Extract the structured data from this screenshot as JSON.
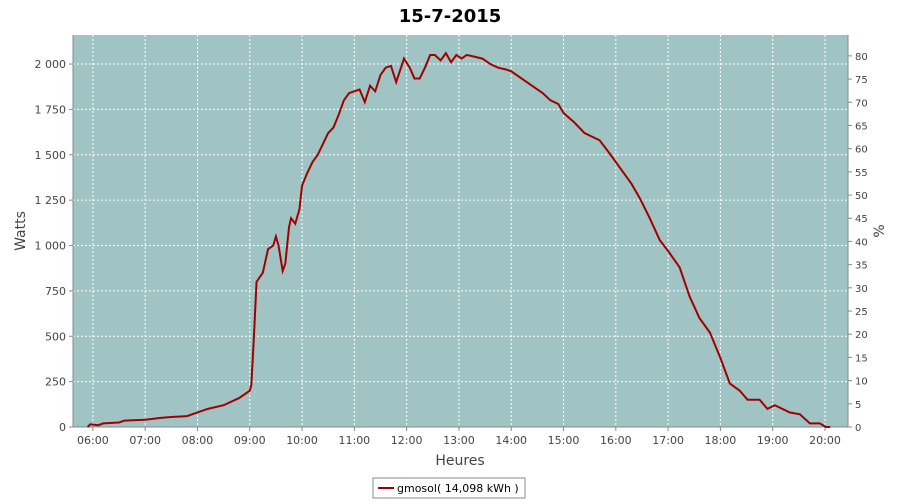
{
  "chart_data": {
    "type": "line",
    "title": "15-7-2015",
    "xlabel": "Heures",
    "ylabel": "Watts",
    "y2label": "%",
    "xlim": [
      5.62,
      20.44
    ],
    "xticks": [
      {
        "value": 6,
        "label": "06:00"
      },
      {
        "value": 7,
        "label": "07:00"
      },
      {
        "value": 8,
        "label": "08:00"
      },
      {
        "value": 9,
        "label": "09:00"
      },
      {
        "value": 10,
        "label": "10:00"
      },
      {
        "value": 11,
        "label": "11:00"
      },
      {
        "value": 12,
        "label": "12:00"
      },
      {
        "value": 13,
        "label": "13:00"
      },
      {
        "value": 14,
        "label": "14:00"
      },
      {
        "value": 15,
        "label": "15:00"
      },
      {
        "value": 16,
        "label": "16:00"
      },
      {
        "value": 17,
        "label": "17:00"
      },
      {
        "value": 18,
        "label": "18:00"
      },
      {
        "value": 19,
        "label": "19:00"
      },
      {
        "value": 20,
        "label": "20:00"
      }
    ],
    "ylim": [
      0,
      2160
    ],
    "yticks": [
      0,
      250,
      500,
      750,
      {
        "value": 1000,
        "label": "1 000"
      },
      {
        "value": 1250,
        "label": "1 250"
      },
      {
        "value": 1500,
        "label": "1 500"
      },
      {
        "value": 1750,
        "label": "1 750"
      },
      {
        "value": 2000,
        "label": "2 000"
      }
    ],
    "y2lim": [
      0,
      84.5
    ],
    "y2ticks": [
      0,
      5,
      10,
      15,
      20,
      25,
      30,
      35,
      40,
      45,
      50,
      55,
      60,
      65,
      70,
      75,
      80
    ],
    "grid": true,
    "legend": "bottom",
    "x": [
      5.9,
      5.95,
      6.1,
      6.2,
      6.5,
      6.6,
      7.0,
      7.3,
      7.5,
      7.8,
      8.0,
      8.2,
      8.5,
      8.8,
      9.0,
      9.03,
      9.08,
      9.13,
      9.25,
      9.35,
      9.45,
      9.5,
      9.55,
      9.63,
      9.68,
      9.75,
      9.79,
      9.87,
      9.95,
      10.0,
      10.1,
      10.2,
      10.3,
      10.4,
      10.5,
      10.6,
      10.7,
      10.8,
      10.9,
      11.0,
      11.1,
      11.2,
      11.3,
      11.4,
      11.5,
      11.6,
      11.7,
      11.8,
      11.95,
      12.06,
      12.15,
      12.25,
      12.35,
      12.45,
      12.54,
      12.65,
      12.75,
      12.85,
      12.95,
      13.05,
      13.15,
      13.3,
      13.45,
      13.6,
      13.75,
      13.9,
      14.0,
      14.2,
      14.4,
      14.6,
      14.75,
      14.9,
      15.0,
      15.2,
      15.4,
      15.69,
      15.9,
      16.1,
      16.3,
      16.46,
      16.65,
      16.84,
      17.0,
      17.22,
      17.41,
      17.6,
      17.8,
      18.0,
      18.18,
      18.37,
      18.52,
      18.75,
      18.9,
      19.04,
      19.33,
      19.52,
      19.71,
      19.9,
      20.02,
      20.1
    ],
    "series": [
      {
        "name": "gmosol( 14,098 kWh )",
        "color": "#a00000",
        "values": [
          0,
          15,
          10,
          20,
          25,
          35,
          40,
          50,
          55,
          60,
          80,
          100,
          120,
          160,
          200,
          230,
          500,
          800,
          850,
          980,
          1000,
          1050,
          1000,
          860,
          900,
          1100,
          1150,
          1120,
          1200,
          1330,
          1400,
          1460,
          1500,
          1560,
          1620,
          1650,
          1720,
          1800,
          1840,
          1850,
          1860,
          1790,
          1880,
          1850,
          1940,
          1980,
          1990,
          1900,
          2030,
          1980,
          1920,
          1920,
          1980,
          2050,
          2050,
          2020,
          2060,
          2010,
          2050,
          2030,
          2050,
          2040,
          2030,
          2000,
          1980,
          1970,
          1960,
          1920,
          1880,
          1840,
          1800,
          1780,
          1730,
          1680,
          1620,
          1580,
          1500,
          1420,
          1340,
          1260,
          1150,
          1030,
          970,
          880,
          720,
          600,
          520,
          380,
          240,
          200,
          150,
          150,
          100,
          120,
          80,
          70,
          20,
          20,
          0,
          0
        ]
      }
    ]
  }
}
